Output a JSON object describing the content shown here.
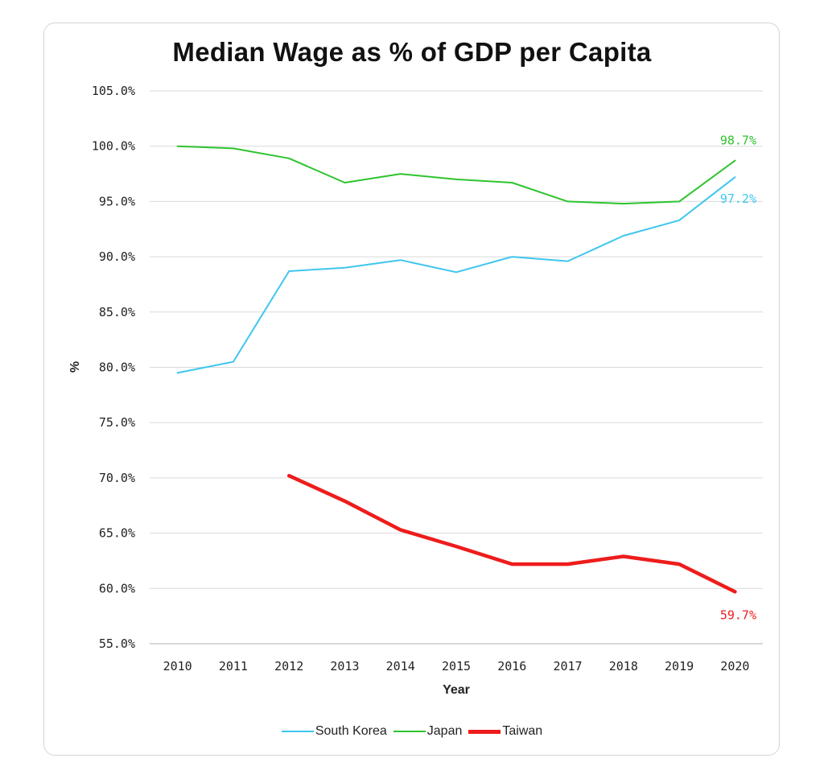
{
  "chart_data": {
    "type": "line",
    "title": "Median Wage as % of GDP per Capita",
    "xlabel": "Year",
    "ylabel": "%",
    "x": [
      "2010",
      "2011",
      "2012",
      "2013",
      "2014",
      "2015",
      "2016",
      "2017",
      "2018",
      "2019",
      "2020"
    ],
    "ylim": [
      55,
      105
    ],
    "yticks": [
      55,
      60,
      65,
      70,
      75,
      80,
      85,
      90,
      95,
      100,
      105
    ],
    "ytick_labels": [
      "55.0%",
      "60.0%",
      "65.0%",
      "70.0%",
      "75.0%",
      "80.0%",
      "85.0%",
      "90.0%",
      "95.0%",
      "100.0%",
      "105.0%"
    ],
    "grid": true,
    "legend_position": "bottom",
    "series": [
      {
        "name": "South Korea",
        "color": "#3fc6ef",
        "values": [
          79.5,
          80.5,
          88.7,
          89.0,
          89.7,
          88.6,
          90.0,
          89.6,
          91.9,
          93.3,
          97.2
        ],
        "end_label": "97.2%"
      },
      {
        "name": "Japan",
        "color": "#2ec42e",
        "values": [
          100.0,
          99.8,
          98.9,
          96.7,
          97.5,
          97.0,
          96.7,
          95.0,
          94.8,
          95.0,
          98.7
        ],
        "end_label": "98.7%"
      },
      {
        "name": "Taiwan",
        "color": "#ee1c1c",
        "values": [
          null,
          null,
          70.2,
          67.9,
          65.3,
          63.8,
          62.2,
          62.2,
          62.9,
          62.2,
          59.7
        ],
        "end_label": "59.7%"
      }
    ]
  }
}
